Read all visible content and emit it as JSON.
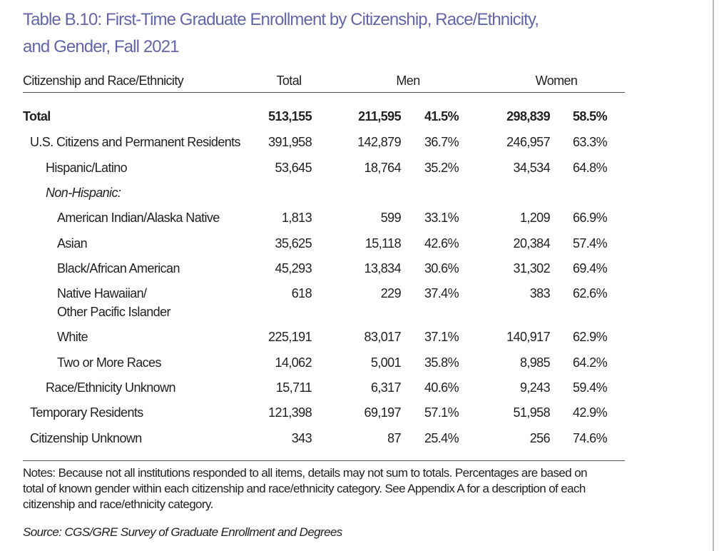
{
  "header": {
    "title": [
      "Table B.10: First-Time Graduate Enrollment by Citizenship, Race/Ethnicity,",
      "and Gender, Fall 2021"
    ]
  },
  "table": {
    "columns": [
      "Citizenship and Race/Ethnicity",
      "Total",
      "Men",
      "Women"
    ],
    "rows": [
      [
        "Total",
        "513,155",
        "211,595",
        "41.5%",
        "298,839",
        "58.5%"
      ],
      [
        "U.S. Citizens and Permanent Residents",
        "391,958",
        "142,879",
        "36.7%",
        "246,957",
        "63.3%"
      ],
      [
        "Hispanic/Latino",
        "53,645",
        "18,764",
        "35.2%",
        "34,534",
        "64.8%"
      ],
      [
        "Non-Hispanic:"
      ],
      [
        "American Indian/Alaska Native",
        "1,813",
        "599",
        "33.1%",
        "1,209",
        "66.9%"
      ],
      [
        "Asian",
        "35,625",
        "15,118",
        "42.6%",
        "20,384",
        "57.4%"
      ],
      [
        "Black/African American",
        "45,293",
        "13,834",
        "30.6%",
        "31,302",
        "69.4%"
      ],
      [
        [
          "Native Hawaiian/",
          "Other Pacific Islander"
        ],
        "618",
        "229",
        "37.4%",
        "383",
        "62.6%"
      ],
      [
        "White",
        "225,191",
        "83,017",
        "37.1%",
        "140,917",
        "62.9%"
      ],
      [
        "Two or More Races",
        "14,062",
        "5,001",
        "35.8%",
        "8,985",
        "64.2%"
      ],
      [
        "Race/Ethnicity Unknown",
        "15,711",
        "6,317",
        "40.6%",
        "9,243",
        "59.4%"
      ],
      [
        "Temporary Residents",
        "121,398",
        "69,197",
        "57.1%",
        "51,958",
        "42.9%"
      ],
      [
        "Citizenship Unknown",
        "343",
        "87",
        "25.4%",
        "256",
        "74.6%"
      ]
    ]
  },
  "notes": "Notes: Because not all institutions responded to all items, details may not sum to totals. Percentages are based on total of known gender within each citizenship and race/ethnicity category. See Appendix A for a description of each citizenship and race/ethnicity category.",
  "source": "Source: CGS/GRE Survey of Graduate Enrollment and Degrees"
}
